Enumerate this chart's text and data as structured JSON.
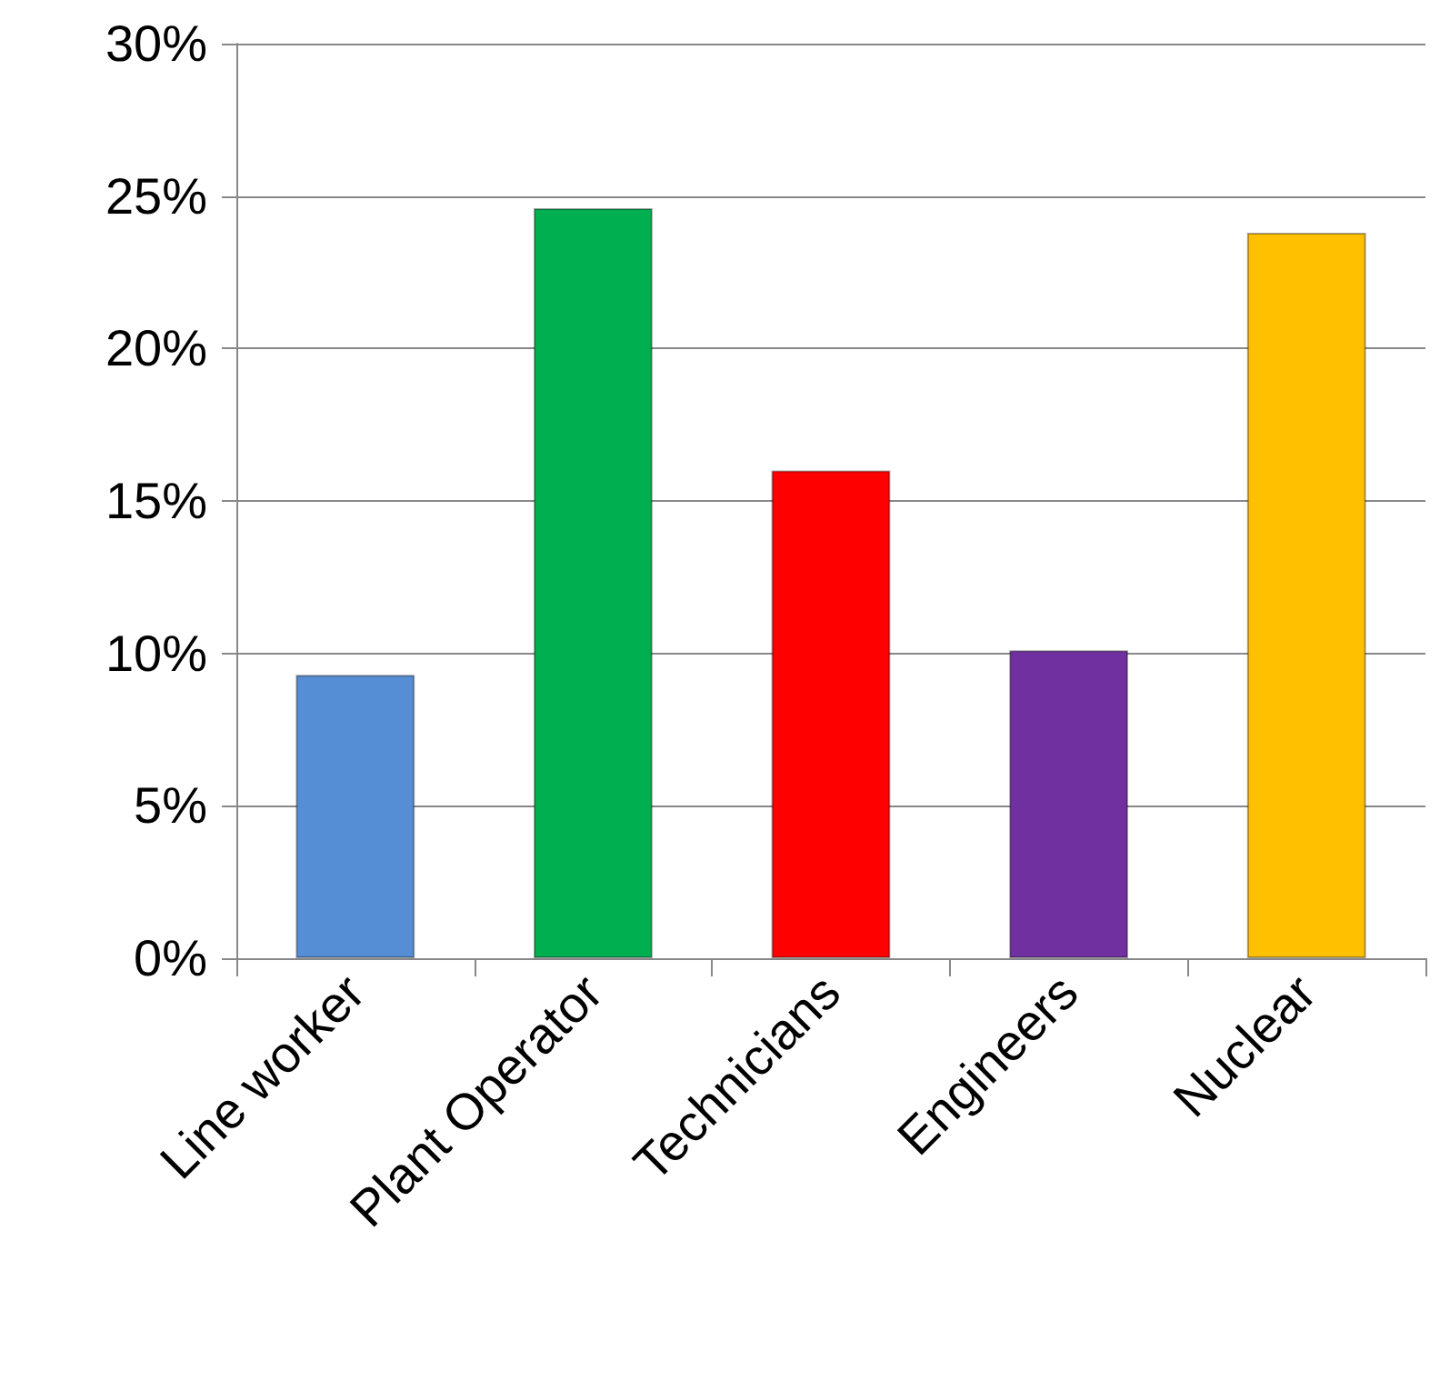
{
  "chart_data": {
    "type": "bar",
    "categories": [
      "Line worker",
      "Plant Operator",
      "Technicians",
      "Engineers",
      "Nuclear"
    ],
    "values": [
      9.3,
      24.6,
      16.0,
      10.1,
      23.8
    ],
    "colors": [
      "#558ed5",
      "#00b050",
      "#ff0000",
      "#7030a0",
      "#ffc000"
    ],
    "ylim": [
      0,
      30
    ],
    "yticks": [
      {
        "value": 0,
        "label": "0%"
      },
      {
        "value": 5,
        "label": "5%"
      },
      {
        "value": 10,
        "label": "10%"
      },
      {
        "value": 15,
        "label": "15%"
      },
      {
        "value": 20,
        "label": "20%"
      },
      {
        "value": 25,
        "label": "25%"
      },
      {
        "value": 30,
        "label": "30%"
      }
    ],
    "grid": "y"
  }
}
